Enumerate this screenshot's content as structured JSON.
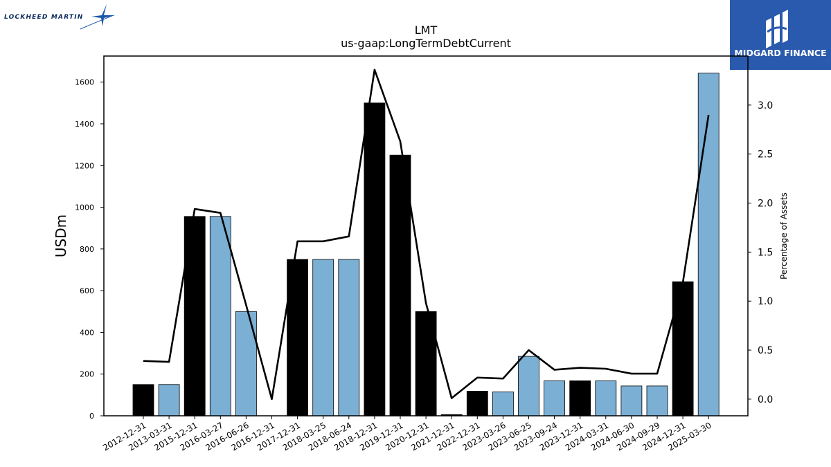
{
  "branding": {
    "left_logo_text": "LOCKHEED MARTIN",
    "right_logo_text": "MIDGARD FINANCE",
    "brand_color": "#2a5aad"
  },
  "chart_data": {
    "type": "bar",
    "title": "LMT",
    "subtitle": "us-gaap:LongTermDebtCurrent",
    "ylabel": "USDm",
    "y2label": "Percentage of Assets",
    "ylim": [
      0,
      1725
    ],
    "y2lim": [
      -0.17,
      3.5
    ],
    "yticks": [
      0,
      200,
      400,
      600,
      800,
      1000,
      1200,
      1400,
      1600
    ],
    "y2ticks": [
      "0.0",
      "0.5",
      "1.0",
      "1.5",
      "2.0",
      "2.5",
      "3.0"
    ],
    "categories": [
      "2012-12-31",
      "2013-03-31",
      "2015-12-31",
      "2016-03-27",
      "2016-06-26",
      "2016-12-31",
      "2017-12-31",
      "2018-03-25",
      "2018-06-24",
      "2018-12-31",
      "2019-12-31",
      "2020-12-31",
      "2021-12-31",
      "2022-12-31",
      "2023-03-26",
      "2023-06-25",
      "2023-09-24",
      "2023-12-31",
      "2024-03-31",
      "2024-06-30",
      "2024-09-29",
      "2024-12-31",
      "2025-03-30"
    ],
    "series": [
      {
        "kind": "bar",
        "values": [
          150,
          150,
          956,
          956,
          500,
          0,
          750,
          750,
          750,
          1500,
          1250,
          500,
          6,
          118,
          115,
          285,
          168,
          168,
          168,
          143,
          143,
          643,
          1643
        ],
        "annual": [
          true,
          false,
          true,
          false,
          false,
          true,
          true,
          false,
          false,
          true,
          true,
          true,
          true,
          true,
          false,
          false,
          false,
          true,
          false,
          false,
          false,
          true,
          false
        ]
      },
      {
        "kind": "line",
        "axis": "right",
        "values": [
          0.39,
          0.38,
          1.94,
          1.9,
          0.96,
          0.0,
          1.61,
          1.61,
          1.66,
          3.36,
          2.63,
          0.98,
          0.01,
          0.22,
          0.21,
          0.5,
          0.3,
          0.32,
          0.31,
          0.26,
          0.26,
          1.19,
          2.9
        ]
      }
    ],
    "colors": {
      "annual": "#000000",
      "quarterly": "#7bafd4",
      "line": "#000000"
    },
    "legend": "none",
    "grid": false
  }
}
